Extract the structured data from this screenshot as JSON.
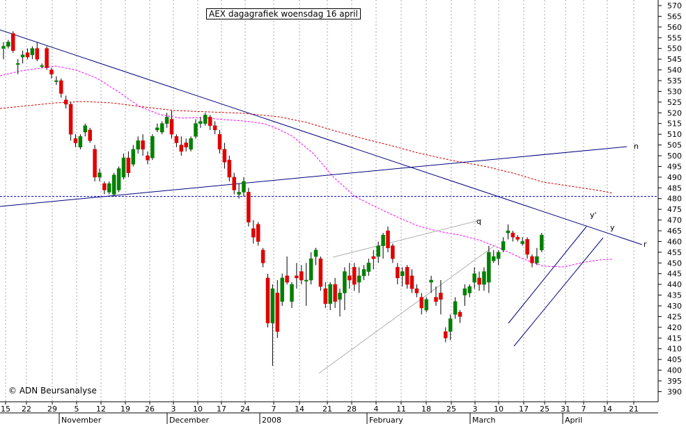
{
  "chart_data": {
    "type": "candlestick",
    "title": "AEX dagagrafiek woensdag 16 april",
    "watermark": "© ADN Beursanalyse",
    "y_axis": {
      "ylim": [
        385,
        572
      ],
      "ticks": [
        390,
        395,
        400,
        405,
        410,
        415,
        420,
        425,
        430,
        435,
        440,
        445,
        450,
        455,
        460,
        465,
        470,
        475,
        480,
        485,
        490,
        495,
        500,
        505,
        510,
        515,
        520,
        525,
        530,
        535,
        540,
        545,
        550,
        555,
        560,
        565,
        570
      ],
      "position": "right"
    },
    "x_axis": {
      "day_ticks": [
        "15",
        "22",
        "29",
        "5",
        "12",
        "19",
        "26",
        "3",
        "10",
        "17",
        "24",
        "7",
        "14",
        "21",
        "28",
        "4",
        "11",
        "18",
        "25",
        "3",
        "10",
        "17",
        "25",
        "31",
        "7",
        "14",
        "21"
      ],
      "month_labels": [
        "November",
        "December",
        "2008",
        "February",
        "March",
        "April"
      ]
    },
    "grid": true,
    "colors": {
      "up": "#008000",
      "down": "#e00000",
      "trendlines": "#000080",
      "ma_short": "#ff00ff",
      "ma_long": "#cc0000",
      "channel_grey": "#b0b0b0",
      "support_dashed": "#0000c0"
    },
    "annotations": [
      {
        "text": "n",
        "anchor_value": 505
      },
      {
        "text": "r",
        "anchor_value": 459
      },
      {
        "text": "q",
        "anchor_value": 472
      },
      {
        "text": "y'",
        "anchor_value": 468
      },
      {
        "text": "y",
        "anchor_value": 463
      }
    ],
    "horizontal_line": 481,
    "candles": [
      {
        "o": 550,
        "h": 553,
        "l": 545,
        "c": 551
      },
      {
        "o": 551,
        "h": 554,
        "l": 550,
        "c": 553
      },
      {
        "o": 557,
        "h": 558,
        "l": 548,
        "c": 549
      },
      {
        "o": 543,
        "h": 545,
        "l": 538,
        "c": 543
      },
      {
        "o": 546,
        "h": 549,
        "l": 543,
        "c": 547
      },
      {
        "o": 548,
        "h": 550,
        "l": 545,
        "c": 546
      },
      {
        "o": 547,
        "h": 551,
        "l": 545,
        "c": 550
      },
      {
        "o": 550,
        "h": 553,
        "l": 544,
        "c": 545
      },
      {
        "o": 542,
        "h": 543,
        "l": 541,
        "c": 542
      },
      {
        "o": 550,
        "h": 551,
        "l": 540,
        "c": 541
      },
      {
        "o": 540,
        "h": 541,
        "l": 536,
        "c": 538
      },
      {
        "o": 535,
        "h": 537,
        "l": 533,
        "c": 535
      },
      {
        "o": 535,
        "h": 536,
        "l": 527,
        "c": 529
      },
      {
        "o": 526,
        "h": 528,
        "l": 522,
        "c": 524
      },
      {
        "o": 524,
        "h": 525,
        "l": 507,
        "c": 510
      },
      {
        "o": 508,
        "h": 510,
        "l": 504,
        "c": 506
      },
      {
        "o": 504,
        "h": 510,
        "l": 503,
        "c": 509
      },
      {
        "o": 511,
        "h": 515,
        "l": 509,
        "c": 514
      },
      {
        "o": 512,
        "h": 513,
        "l": 506,
        "c": 507
      },
      {
        "o": 503,
        "h": 505,
        "l": 488,
        "c": 490
      },
      {
        "o": 490,
        "h": 494,
        "l": 488,
        "c": 492
      },
      {
        "o": 487,
        "h": 488,
        "l": 482,
        "c": 484
      },
      {
        "o": 483,
        "h": 488,
        "l": 482,
        "c": 487
      },
      {
        "o": 482,
        "h": 492,
        "l": 481,
        "c": 491
      },
      {
        "o": 484,
        "h": 495,
        "l": 483,
        "c": 494
      },
      {
        "o": 490,
        "h": 501,
        "l": 489,
        "c": 499
      },
      {
        "o": 499,
        "h": 502,
        "l": 490,
        "c": 492
      },
      {
        "o": 496,
        "h": 505,
        "l": 495,
        "c": 503
      },
      {
        "o": 503,
        "h": 509,
        "l": 501,
        "c": 507
      },
      {
        "o": 507,
        "h": 510,
        "l": 500,
        "c": 503
      },
      {
        "o": 500,
        "h": 502,
        "l": 496,
        "c": 498
      },
      {
        "o": 499,
        "h": 510,
        "l": 498,
        "c": 509
      },
      {
        "o": 512,
        "h": 515,
        "l": 511,
        "c": 513
      },
      {
        "o": 511,
        "h": 516,
        "l": 510,
        "c": 515
      },
      {
        "o": 515,
        "h": 520,
        "l": 513,
        "c": 518
      },
      {
        "o": 517,
        "h": 521,
        "l": 508,
        "c": 510
      },
      {
        "o": 509,
        "h": 510,
        "l": 504,
        "c": 506
      },
      {
        "o": 505,
        "h": 509,
        "l": 500,
        "c": 502
      },
      {
        "o": 506,
        "h": 508,
        "l": 502,
        "c": 504
      },
      {
        "o": 503,
        "h": 509,
        "l": 502,
        "c": 508
      },
      {
        "o": 509,
        "h": 517,
        "l": 508,
        "c": 515
      },
      {
        "o": 515,
        "h": 518,
        "l": 513,
        "c": 516
      },
      {
        "o": 515,
        "h": 520,
        "l": 514,
        "c": 519
      },
      {
        "o": 518,
        "h": 519,
        "l": 512,
        "c": 514
      },
      {
        "o": 514,
        "h": 516,
        "l": 510,
        "c": 512
      },
      {
        "o": 510,
        "h": 512,
        "l": 501,
        "c": 503
      },
      {
        "o": 503,
        "h": 506,
        "l": 494,
        "c": 497
      },
      {
        "o": 498,
        "h": 500,
        "l": 488,
        "c": 490
      },
      {
        "o": 490,
        "h": 492,
        "l": 482,
        "c": 484
      },
      {
        "o": 482,
        "h": 487,
        "l": 480,
        "c": 483
      },
      {
        "o": 483,
        "h": 490,
        "l": 481,
        "c": 488
      },
      {
        "o": 483,
        "h": 485,
        "l": 467,
        "c": 469
      },
      {
        "o": 466,
        "h": 470,
        "l": 459,
        "c": 462
      },
      {
        "o": 468,
        "h": 469,
        "l": 458,
        "c": 460
      },
      {
        "o": 456,
        "h": 457,
        "l": 448,
        "c": 450
      },
      {
        "o": 443,
        "h": 445,
        "l": 420,
        "c": 422
      },
      {
        "o": 422,
        "h": 440,
        "l": 402,
        "c": 438
      },
      {
        "o": 436,
        "h": 442,
        "l": 415,
        "c": 418
      },
      {
        "o": 432,
        "h": 445,
        "l": 430,
        "c": 443
      },
      {
        "o": 444,
        "h": 453,
        "l": 440,
        "c": 441
      },
      {
        "o": 432,
        "h": 441,
        "l": 429,
        "c": 440
      },
      {
        "o": 444,
        "h": 450,
        "l": 438,
        "c": 443
      },
      {
        "o": 446,
        "h": 449,
        "l": 440,
        "c": 442
      },
      {
        "o": 442,
        "h": 450,
        "l": 430,
        "c": 442
      },
      {
        "o": 442,
        "h": 455,
        "l": 440,
        "c": 452
      },
      {
        "o": 453,
        "h": 457,
        "l": 449,
        "c": 456
      },
      {
        "o": 452,
        "h": 453,
        "l": 437,
        "c": 439
      },
      {
        "o": 438,
        "h": 441,
        "l": 429,
        "c": 431
      },
      {
        "o": 431,
        "h": 441,
        "l": 428,
        "c": 440
      },
      {
        "o": 440,
        "h": 443,
        "l": 429,
        "c": 432
      },
      {
        "o": 433,
        "h": 438,
        "l": 425,
        "c": 436
      },
      {
        "o": 436,
        "h": 448,
        "l": 428,
        "c": 446
      },
      {
        "o": 444,
        "h": 450,
        "l": 438,
        "c": 442
      },
      {
        "o": 448,
        "h": 450,
        "l": 437,
        "c": 440
      },
      {
        "o": 441,
        "h": 448,
        "l": 436,
        "c": 444
      },
      {
        "o": 444,
        "h": 449,
        "l": 442,
        "c": 447
      },
      {
        "o": 446,
        "h": 452,
        "l": 444,
        "c": 450
      },
      {
        "o": 453,
        "h": 456,
        "l": 447,
        "c": 452
      },
      {
        "o": 453,
        "h": 460,
        "l": 450,
        "c": 458
      },
      {
        "o": 458,
        "h": 464,
        "l": 452,
        "c": 463
      },
      {
        "o": 465,
        "h": 467,
        "l": 455,
        "c": 457
      },
      {
        "o": 458,
        "h": 459,
        "l": 450,
        "c": 452
      },
      {
        "o": 448,
        "h": 450,
        "l": 440,
        "c": 443
      },
      {
        "o": 444,
        "h": 448,
        "l": 439,
        "c": 446
      },
      {
        "o": 448,
        "h": 449,
        "l": 438,
        "c": 440
      },
      {
        "o": 444,
        "h": 447,
        "l": 436,
        "c": 438
      },
      {
        "o": 438,
        "h": 440,
        "l": 434,
        "c": 436
      },
      {
        "o": 434,
        "h": 436,
        "l": 426,
        "c": 429
      },
      {
        "o": 428,
        "h": 434,
        "l": 427,
        "c": 433
      },
      {
        "o": 441,
        "h": 444,
        "l": 436,
        "c": 442
      },
      {
        "o": 434,
        "h": 439,
        "l": 430,
        "c": 432
      },
      {
        "o": 436,
        "h": 442,
        "l": 426,
        "c": 433
      },
      {
        "o": 418,
        "h": 420,
        "l": 413,
        "c": 415
      },
      {
        "o": 418,
        "h": 426,
        "l": 414,
        "c": 424
      },
      {
        "o": 426,
        "h": 434,
        "l": 424,
        "c": 432
      },
      {
        "o": 427,
        "h": 428,
        "l": 422,
        "c": 425
      },
      {
        "o": 435,
        "h": 440,
        "l": 430,
        "c": 438
      },
      {
        "o": 436,
        "h": 440,
        "l": 434,
        "c": 439
      },
      {
        "o": 441,
        "h": 448,
        "l": 438,
        "c": 445
      },
      {
        "o": 443,
        "h": 446,
        "l": 437,
        "c": 440
      },
      {
        "o": 440,
        "h": 448,
        "l": 437,
        "c": 446
      },
      {
        "o": 441,
        "h": 458,
        "l": 436,
        "c": 455
      },
      {
        "o": 451,
        "h": 456,
        "l": 450,
        "c": 453
      },
      {
        "o": 452,
        "h": 456,
        "l": 449,
        "c": 455
      },
      {
        "o": 456,
        "h": 462,
        "l": 455,
        "c": 460
      },
      {
        "o": 464,
        "h": 468,
        "l": 461,
        "c": 465
      },
      {
        "o": 464,
        "h": 465,
        "l": 460,
        "c": 462
      },
      {
        "o": 462,
        "h": 463,
        "l": 460,
        "c": 461
      },
      {
        "o": 459,
        "h": 462,
        "l": 458,
        "c": 460
      },
      {
        "o": 461,
        "h": 462,
        "l": 452,
        "c": 454
      },
      {
        "o": 453,
        "h": 454,
        "l": 448,
        "c": 450
      },
      {
        "o": 450,
        "h": 457,
        "l": 449,
        "c": 453
      },
      {
        "o": 456,
        "h": 464,
        "l": 455,
        "c": 463
      }
    ]
  }
}
